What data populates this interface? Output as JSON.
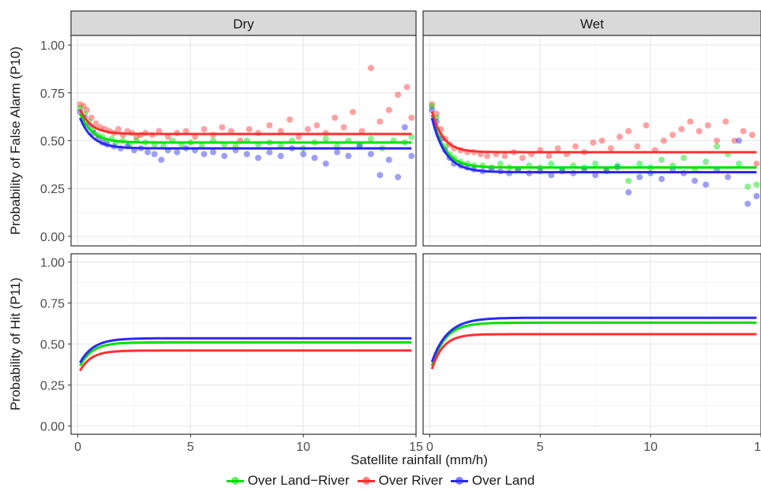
{
  "chart_data": {
    "type": "scatter",
    "xlabel": "Satellite rainfall (mm/h)",
    "x_ticks": [
      0,
      5,
      10,
      15
    ],
    "xlim": [
      -0.3,
      15.0
    ],
    "y_ticks": [
      "0.00",
      "0.25",
      "0.50",
      "0.75",
      "1.00"
    ],
    "ylim": [
      -0.05,
      1.05
    ],
    "grid": true,
    "legend_position": "bottom",
    "columns": [
      "Dry",
      "Wet"
    ],
    "rows": [
      {
        "ylabel": "Probability of False Alarm (P10)"
      },
      {
        "ylabel": "Probability of Hit (P11)"
      }
    ],
    "series": [
      {
        "name": "Over Land−River",
        "color": "#00E000"
      },
      {
        "name": "Over River",
        "color": "#FF3030"
      },
      {
        "name": "Over Land",
        "color": "#2A2AF0"
      }
    ],
    "curve_model": "y = plateau - (plateau - start) * exp(-x / scale)",
    "fitted_curves": {
      "Dry": {
        "P10": [
          {
            "series": "Over Land−River",
            "start": 0.67,
            "plateau": 0.49,
            "scale": 0.55,
            "x_range": [
              0.1,
              14.8
            ]
          },
          {
            "series": "Over River",
            "start": 0.69,
            "plateau": 0.535,
            "scale": 0.5,
            "x_range": [
              0.1,
              14.8
            ]
          },
          {
            "series": "Over Land",
            "start": 0.65,
            "plateau": 0.46,
            "scale": 0.55,
            "x_range": [
              0.1,
              14.8
            ]
          }
        ],
        "P11": [
          {
            "series": "Over Land−River",
            "start": 0.34,
            "plateau": 0.51,
            "scale": 0.55,
            "x_range": [
              0.1,
              14.8
            ]
          },
          {
            "series": "Over River",
            "start": 0.31,
            "plateau": 0.46,
            "scale": 0.5,
            "x_range": [
              0.1,
              14.8
            ]
          },
          {
            "series": "Over Land",
            "start": 0.36,
            "plateau": 0.535,
            "scale": 0.6,
            "x_range": [
              0.1,
              14.8
            ]
          }
        ]
      },
      "Wet": {
        "P10": [
          {
            "series": "Over Land−River",
            "start": 0.69,
            "plateau": 0.36,
            "scale": 0.55,
            "x_range": [
              0.1,
              14.8
            ]
          },
          {
            "series": "Over River",
            "start": 0.7,
            "plateau": 0.44,
            "scale": 0.5,
            "x_range": [
              0.1,
              14.8
            ]
          },
          {
            "series": "Over Land",
            "start": 0.67,
            "plateau": 0.335,
            "scale": 0.6,
            "x_range": [
              0.1,
              14.8
            ]
          }
        ],
        "P11": [
          {
            "series": "Over Land−River",
            "start": 0.32,
            "plateau": 0.63,
            "scale": 0.6,
            "x_range": [
              0.1,
              14.8
            ]
          },
          {
            "series": "Over River",
            "start": 0.3,
            "plateau": 0.56,
            "scale": 0.5,
            "x_range": [
              0.1,
              14.8
            ]
          },
          {
            "series": "Over Land",
            "start": 0.35,
            "plateau": 0.66,
            "scale": 0.7,
            "x_range": [
              0.1,
              14.8
            ]
          }
        ]
      }
    },
    "observed_points": {
      "Dry": {
        "Over River": [
          [
            0.1,
            0.69
          ],
          [
            0.25,
            0.68
          ],
          [
            0.4,
            0.66
          ],
          [
            0.6,
            0.62
          ],
          [
            0.8,
            0.59
          ],
          [
            1.0,
            0.57
          ],
          [
            1.2,
            0.56
          ],
          [
            1.4,
            0.55
          ],
          [
            1.6,
            0.54
          ],
          [
            1.8,
            0.56
          ],
          [
            2.0,
            0.53
          ],
          [
            2.2,
            0.55
          ],
          [
            2.4,
            0.54
          ],
          [
            2.6,
            0.52
          ],
          [
            2.8,
            0.53
          ],
          [
            3.0,
            0.54
          ],
          [
            3.3,
            0.53
          ],
          [
            3.6,
            0.55
          ],
          [
            4.0,
            0.52
          ],
          [
            4.4,
            0.54
          ],
          [
            4.8,
            0.55
          ],
          [
            5.2,
            0.52
          ],
          [
            5.6,
            0.56
          ],
          [
            6.0,
            0.53
          ],
          [
            6.4,
            0.57
          ],
          [
            6.8,
            0.55
          ],
          [
            7.2,
            0.5
          ],
          [
            7.6,
            0.56
          ],
          [
            8.0,
            0.54
          ],
          [
            8.5,
            0.58
          ],
          [
            9.0,
            0.55
          ],
          [
            9.4,
            0.61
          ],
          [
            9.8,
            0.52
          ],
          [
            10.2,
            0.56
          ],
          [
            10.6,
            0.58
          ],
          [
            11.0,
            0.54
          ],
          [
            11.4,
            0.62
          ],
          [
            11.8,
            0.57
          ],
          [
            12.2,
            0.65
          ],
          [
            12.6,
            0.55
          ],
          [
            13.0,
            0.88
          ],
          [
            13.4,
            0.6
          ],
          [
            13.8,
            0.66
          ],
          [
            14.2,
            0.74
          ],
          [
            14.6,
            0.78
          ],
          [
            14.8,
            0.62
          ]
        ],
        "Over Land−River": [
          [
            0.1,
            0.67
          ],
          [
            0.3,
            0.64
          ],
          [
            0.5,
            0.6
          ],
          [
            0.7,
            0.56
          ],
          [
            0.9,
            0.53
          ],
          [
            1.1,
            0.52
          ],
          [
            1.3,
            0.5
          ],
          [
            1.5,
            0.51
          ],
          [
            1.7,
            0.49
          ],
          [
            2.0,
            0.5
          ],
          [
            2.3,
            0.48
          ],
          [
            2.6,
            0.5
          ],
          [
            3.0,
            0.49
          ],
          [
            3.4,
            0.48
          ],
          [
            3.8,
            0.47
          ],
          [
            4.2,
            0.5
          ],
          [
            4.6,
            0.48
          ],
          [
            5.0,
            0.49
          ],
          [
            5.5,
            0.47
          ],
          [
            6.0,
            0.5
          ],
          [
            6.5,
            0.48
          ],
          [
            7.0,
            0.47
          ],
          [
            7.5,
            0.5
          ],
          [
            8.0,
            0.48
          ],
          [
            8.5,
            0.49
          ],
          [
            9.0,
            0.47
          ],
          [
            9.5,
            0.5
          ],
          [
            10.0,
            0.46
          ],
          [
            10.5,
            0.49
          ],
          [
            11.0,
            0.51
          ],
          [
            11.5,
            0.47
          ],
          [
            12.0,
            0.5
          ],
          [
            12.5,
            0.48
          ],
          [
            13.0,
            0.51
          ],
          [
            13.5,
            0.46
          ],
          [
            14.0,
            0.5
          ],
          [
            14.5,
            0.49
          ],
          [
            14.8,
            0.52
          ]
        ],
        "Over Land": [
          [
            0.1,
            0.65
          ],
          [
            0.3,
            0.62
          ],
          [
            0.5,
            0.58
          ],
          [
            0.7,
            0.54
          ],
          [
            0.9,
            0.51
          ],
          [
            1.1,
            0.49
          ],
          [
            1.3,
            0.48
          ],
          [
            1.6,
            0.47
          ],
          [
            1.9,
            0.46
          ],
          [
            2.2,
            0.47
          ],
          [
            2.5,
            0.45
          ],
          [
            2.8,
            0.46
          ],
          [
            3.1,
            0.44
          ],
          [
            3.4,
            0.43
          ],
          [
            3.7,
            0.4
          ],
          [
            4.0,
            0.45
          ],
          [
            4.4,
            0.44
          ],
          [
            4.8,
            0.46
          ],
          [
            5.2,
            0.45
          ],
          [
            5.6,
            0.43
          ],
          [
            6.0,
            0.44
          ],
          [
            6.5,
            0.42
          ],
          [
            7.0,
            0.45
          ],
          [
            7.5,
            0.43
          ],
          [
            8.0,
            0.41
          ],
          [
            8.5,
            0.44
          ],
          [
            9.0,
            0.42
          ],
          [
            9.5,
            0.46
          ],
          [
            10.0,
            0.43
          ],
          [
            10.5,
            0.41
          ],
          [
            11.0,
            0.38
          ],
          [
            11.5,
            0.44
          ],
          [
            12.0,
            0.42
          ],
          [
            12.5,
            0.47
          ],
          [
            13.0,
            0.43
          ],
          [
            13.4,
            0.32
          ],
          [
            13.8,
            0.4
          ],
          [
            14.2,
            0.31
          ],
          [
            14.5,
            0.57
          ],
          [
            14.8,
            0.42
          ]
        ]
      },
      "Wet": {
        "Over River": [
          [
            0.1,
            0.69
          ],
          [
            0.3,
            0.64
          ],
          [
            0.5,
            0.56
          ],
          [
            0.7,
            0.51
          ],
          [
            0.9,
            0.48
          ],
          [
            1.1,
            0.46
          ],
          [
            1.4,
            0.45
          ],
          [
            1.7,
            0.44
          ],
          [
            2.0,
            0.44
          ],
          [
            2.3,
            0.43
          ],
          [
            2.6,
            0.42
          ],
          [
            3.0,
            0.43
          ],
          [
            3.4,
            0.42
          ],
          [
            3.8,
            0.44
          ],
          [
            4.2,
            0.41
          ],
          [
            4.6,
            0.43
          ],
          [
            5.0,
            0.45
          ],
          [
            5.4,
            0.42
          ],
          [
            5.8,
            0.46
          ],
          [
            6.2,
            0.43
          ],
          [
            6.6,
            0.47
          ],
          [
            7.0,
            0.44
          ],
          [
            7.4,
            0.49
          ],
          [
            7.8,
            0.5
          ],
          [
            8.2,
            0.46
          ],
          [
            8.6,
            0.52
          ],
          [
            9.0,
            0.55
          ],
          [
            9.4,
            0.47
          ],
          [
            9.8,
            0.58
          ],
          [
            10.2,
            0.45
          ],
          [
            10.6,
            0.5
          ],
          [
            11.0,
            0.53
          ],
          [
            11.4,
            0.56
          ],
          [
            11.8,
            0.6
          ],
          [
            12.2,
            0.55
          ],
          [
            12.6,
            0.58
          ],
          [
            13.0,
            0.5
          ],
          [
            13.4,
            0.6
          ],
          [
            13.8,
            0.5
          ],
          [
            14.2,
            0.55
          ],
          [
            14.6,
            0.53
          ],
          [
            14.8,
            0.38
          ]
        ],
        "Over Land−River": [
          [
            0.1,
            0.68
          ],
          [
            0.3,
            0.62
          ],
          [
            0.5,
            0.53
          ],
          [
            0.7,
            0.47
          ],
          [
            0.9,
            0.43
          ],
          [
            1.1,
            0.41
          ],
          [
            1.4,
            0.39
          ],
          [
            1.7,
            0.38
          ],
          [
            2.0,
            0.37
          ],
          [
            2.4,
            0.37
          ],
          [
            2.8,
            0.36
          ],
          [
            3.2,
            0.38
          ],
          [
            3.6,
            0.36
          ],
          [
            4.0,
            0.35
          ],
          [
            4.5,
            0.37
          ],
          [
            5.0,
            0.36
          ],
          [
            5.5,
            0.38
          ],
          [
            6.0,
            0.35
          ],
          [
            6.5,
            0.37
          ],
          [
            7.0,
            0.36
          ],
          [
            7.5,
            0.38
          ],
          [
            8.0,
            0.35
          ],
          [
            8.5,
            0.37
          ],
          [
            9.0,
            0.29
          ],
          [
            9.5,
            0.38
          ],
          [
            10.0,
            0.36
          ],
          [
            10.5,
            0.4
          ],
          [
            11.0,
            0.37
          ],
          [
            11.5,
            0.41
          ],
          [
            12.0,
            0.35
          ],
          [
            12.5,
            0.39
          ],
          [
            13.0,
            0.47
          ],
          [
            13.5,
            0.43
          ],
          [
            14.0,
            0.38
          ],
          [
            14.4,
            0.26
          ],
          [
            14.8,
            0.27
          ]
        ],
        "Over Land": [
          [
            0.1,
            0.66
          ],
          [
            0.3,
            0.6
          ],
          [
            0.5,
            0.51
          ],
          [
            0.7,
            0.45
          ],
          [
            0.9,
            0.41
          ],
          [
            1.1,
            0.38
          ],
          [
            1.4,
            0.37
          ],
          [
            1.7,
            0.36
          ],
          [
            2.0,
            0.35
          ],
          [
            2.4,
            0.34
          ],
          [
            2.8,
            0.35
          ],
          [
            3.2,
            0.34
          ],
          [
            3.6,
            0.33
          ],
          [
            4.0,
            0.35
          ],
          [
            4.5,
            0.33
          ],
          [
            5.0,
            0.34
          ],
          [
            5.5,
            0.32
          ],
          [
            6.0,
            0.34
          ],
          [
            6.5,
            0.33
          ],
          [
            7.0,
            0.35
          ],
          [
            7.5,
            0.32
          ],
          [
            8.0,
            0.34
          ],
          [
            8.5,
            0.36
          ],
          [
            9.0,
            0.23
          ],
          [
            9.5,
            0.31
          ],
          [
            10.0,
            0.33
          ],
          [
            10.5,
            0.3
          ],
          [
            11.0,
            0.35
          ],
          [
            11.5,
            0.33
          ],
          [
            12.0,
            0.29
          ],
          [
            12.5,
            0.27
          ],
          [
            13.0,
            0.35
          ],
          [
            13.5,
            0.31
          ],
          [
            14.0,
            0.5
          ],
          [
            14.4,
            0.17
          ],
          [
            14.8,
            0.21
          ]
        ]
      }
    }
  }
}
